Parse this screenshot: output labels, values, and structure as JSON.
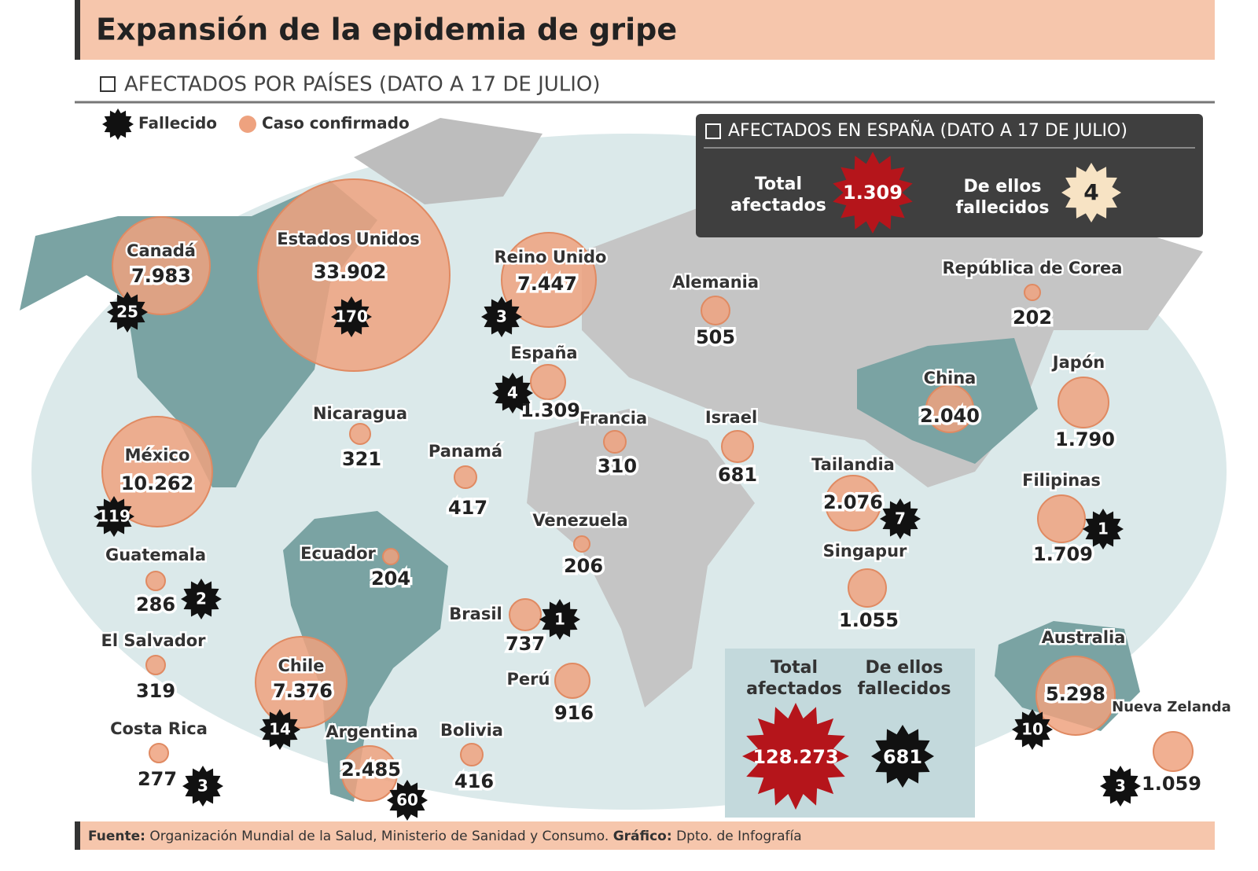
{
  "header": {
    "title": "Expansión de la epidemia de gripe",
    "subtitle": "AFECTADOS POR PAÍSES (DATO A 17 DE JULIO)"
  },
  "legend": {
    "deaths": "Fallecido",
    "cases": "Caso confirmado"
  },
  "spain_box": {
    "title": "AFECTADOS EN ESPAÑA (DATO A 17 DE JULIO)",
    "total_label": [
      "Total",
      "afectados"
    ],
    "total": "1.309",
    "deaths_label": [
      "De ellos",
      "fallecidos"
    ],
    "deaths": "4"
  },
  "world_total": {
    "total_label": [
      "Total",
      "afectados"
    ],
    "total": "128.273",
    "deaths_label": [
      "De ellos",
      "fallecidos"
    ],
    "deaths": "681"
  },
  "countries": [
    {
      "name": "Canadá",
      "cases": "7.983",
      "deaths": "25"
    },
    {
      "name": "Estados Unidos",
      "cases": "33.902",
      "deaths": "170"
    },
    {
      "name": "México",
      "cases": "10.262",
      "deaths": "119"
    },
    {
      "name": "Guatemala",
      "cases": "286",
      "deaths": "2"
    },
    {
      "name": "El Salvador",
      "cases": "319"
    },
    {
      "name": "Costa Rica",
      "cases": "277",
      "deaths": "3"
    },
    {
      "name": "Nicaragua",
      "cases": "321"
    },
    {
      "name": "Panamá",
      "cases": "417"
    },
    {
      "name": "Ecuador",
      "cases": "204"
    },
    {
      "name": "Venezuela",
      "cases": "206"
    },
    {
      "name": "Brasil",
      "cases": "737",
      "deaths": "1"
    },
    {
      "name": "Perú",
      "cases": "916"
    },
    {
      "name": "Chile",
      "cases": "7.376",
      "deaths": "14"
    },
    {
      "name": "Argentina",
      "cases": "2.485",
      "deaths": "60"
    },
    {
      "name": "Bolivia",
      "cases": "416"
    },
    {
      "name": "Reino Unido",
      "cases": "7.447",
      "deaths": "3"
    },
    {
      "name": "España",
      "cases": "1.309",
      "deaths": "4"
    },
    {
      "name": "Francia",
      "cases": "310"
    },
    {
      "name": "Alemania",
      "cases": "505"
    },
    {
      "name": "Israel",
      "cases": "681"
    },
    {
      "name": "República de Corea",
      "cases": "202"
    },
    {
      "name": "China",
      "cases": "2.040"
    },
    {
      "name": "Japón",
      "cases": "1.790"
    },
    {
      "name": "Tailandia",
      "cases": "2.076",
      "deaths": "7"
    },
    {
      "name": "Filipinas",
      "cases": "1.709",
      "deaths": "1"
    },
    {
      "name": "Singapur",
      "cases": "1.055"
    },
    {
      "name": "Australia",
      "cases": "5.298",
      "deaths": "10"
    },
    {
      "name": "Nueva Zelanda",
      "cases": "1.059",
      "deaths": "3"
    }
  ],
  "source": {
    "source_label": "Fuente:",
    "source": "Organización Mundial de la Salud, Ministerio de Sanidad y Consumo.",
    "graphic_label": "Gráfico:",
    "graphic": "Dpto. de Infografía"
  }
}
